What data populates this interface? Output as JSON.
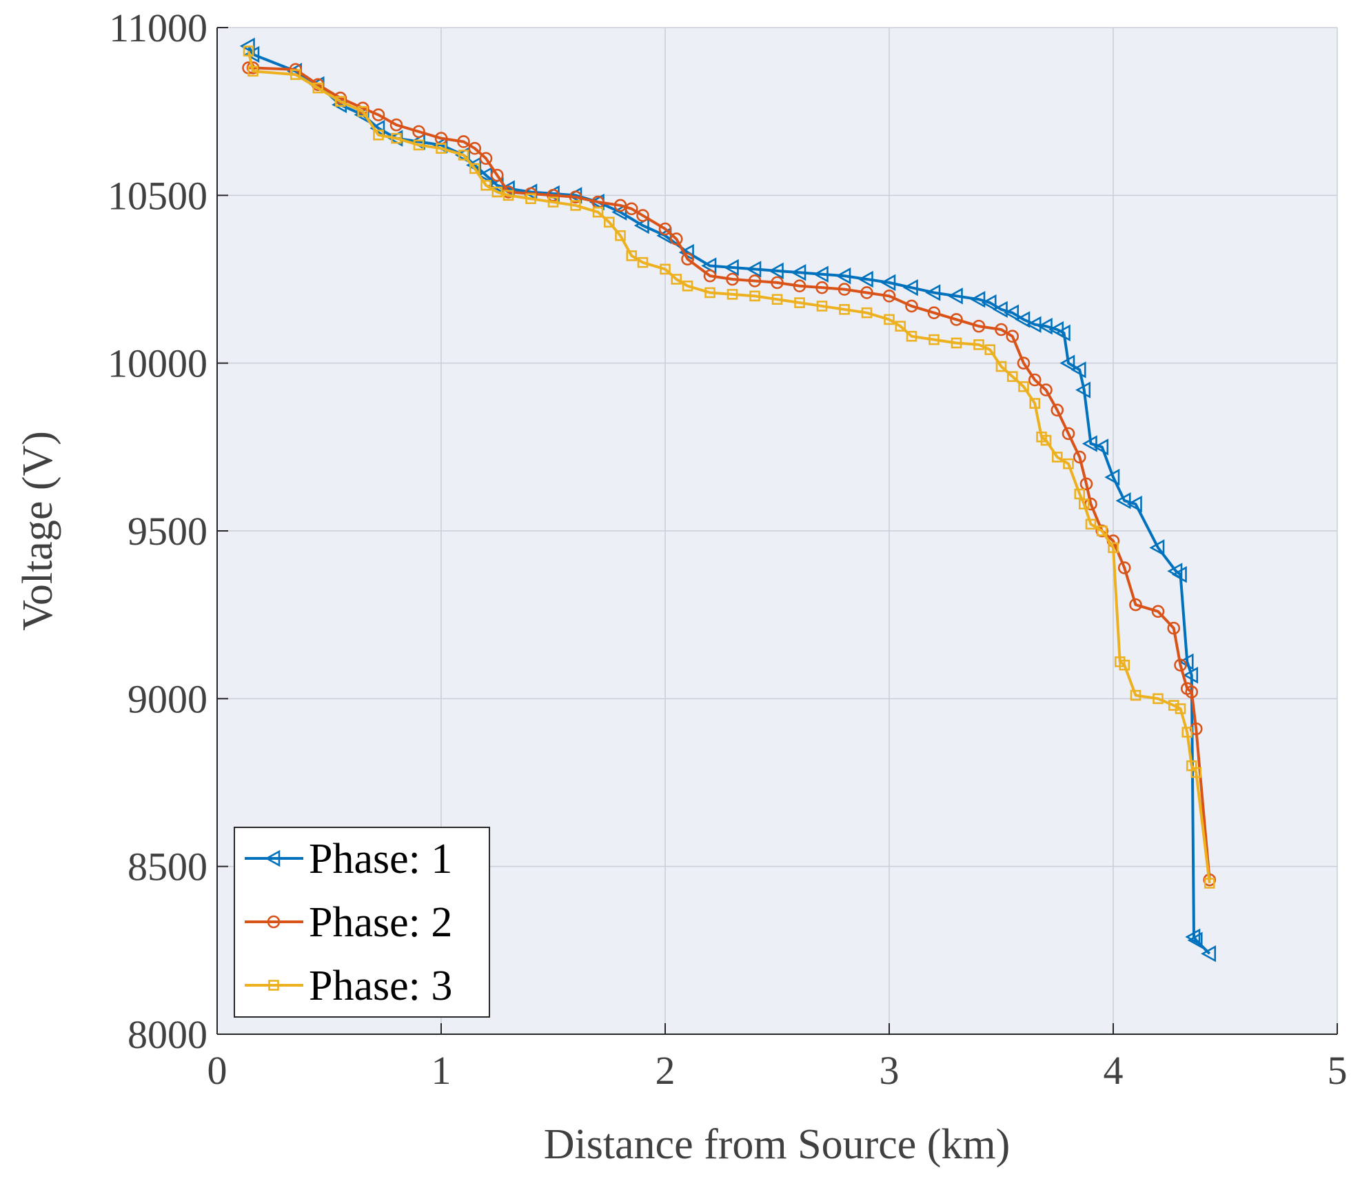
{
  "chart_data": {
    "type": "line",
    "title": "",
    "xlabel": "Distance from Source (km)",
    "ylabel": "Voltage (V)",
    "xlim": [
      0,
      5
    ],
    "ylim": [
      8000,
      11000
    ],
    "xticks": [
      0,
      1,
      2,
      3,
      4,
      5
    ],
    "yticks": [
      8000,
      8500,
      9000,
      9500,
      10000,
      10500,
      11000
    ],
    "grid": true,
    "legend_location": "bottom-left",
    "colors": {
      "plot_bg": "#eceff5",
      "grid": "#c9ced8",
      "axis": "#262626"
    },
    "series": [
      {
        "name": "Phase: 1",
        "color": "#0072BD",
        "marker": "triangle-left",
        "x": [
          0.14,
          0.16,
          0.35,
          0.45,
          0.55,
          0.65,
          0.72,
          0.8,
          0.9,
          1.0,
          1.1,
          1.15,
          1.2,
          1.25,
          1.3,
          1.4,
          1.5,
          1.6,
          1.7,
          1.8,
          1.9,
          2.0,
          2.1,
          2.2,
          2.3,
          2.4,
          2.5,
          2.6,
          2.7,
          2.8,
          2.9,
          3.0,
          3.1,
          3.2,
          3.3,
          3.4,
          3.45,
          3.5,
          3.55,
          3.6,
          3.65,
          3.7,
          3.75,
          3.78,
          3.8,
          3.85,
          3.87,
          3.9,
          3.95,
          4.0,
          4.05,
          4.1,
          4.2,
          4.28,
          4.3,
          4.33,
          4.35,
          4.36,
          4.37,
          4.43
        ],
        "y": [
          10945,
          10920,
          10870,
          10830,
          10770,
          10740,
          10700,
          10670,
          10660,
          10650,
          10620,
          10590,
          10560,
          10530,
          10520,
          10510,
          10505,
          10500,
          10480,
          10450,
          10410,
          10380,
          10330,
          10290,
          10285,
          10280,
          10275,
          10270,
          10265,
          10260,
          10250,
          10240,
          10225,
          10210,
          10200,
          10190,
          10180,
          10160,
          10150,
          10130,
          10115,
          10110,
          10100,
          10090,
          10000,
          9980,
          9920,
          9760,
          9750,
          9660,
          9590,
          9580,
          9450,
          9380,
          9370,
          9110,
          9070,
          8290,
          8280,
          8240
        ]
      },
      {
        "name": "Phase: 2",
        "color": "#D95319",
        "marker": "circle",
        "x": [
          0.14,
          0.16,
          0.35,
          0.45,
          0.55,
          0.65,
          0.72,
          0.8,
          0.9,
          1.0,
          1.1,
          1.15,
          1.2,
          1.25,
          1.3,
          1.4,
          1.5,
          1.6,
          1.7,
          1.8,
          1.85,
          1.9,
          2.0,
          2.05,
          2.1,
          2.2,
          2.3,
          2.4,
          2.5,
          2.6,
          2.7,
          2.8,
          2.9,
          3.0,
          3.1,
          3.2,
          3.3,
          3.4,
          3.5,
          3.55,
          3.6,
          3.65,
          3.7,
          3.75,
          3.8,
          3.85,
          3.88,
          3.9,
          3.95,
          4.0,
          4.05,
          4.1,
          4.2,
          4.27,
          4.3,
          4.33,
          4.35,
          4.37,
          4.43
        ],
        "y": [
          10880,
          10880,
          10875,
          10830,
          10790,
          10760,
          10740,
          10710,
          10690,
          10670,
          10660,
          10640,
          10610,
          10560,
          10510,
          10505,
          10500,
          10495,
          10480,
          10470,
          10460,
          10440,
          10400,
          10370,
          10310,
          10260,
          10250,
          10245,
          10240,
          10230,
          10225,
          10220,
          10210,
          10200,
          10170,
          10150,
          10130,
          10110,
          10100,
          10080,
          10000,
          9950,
          9920,
          9860,
          9790,
          9720,
          9640,
          9580,
          9500,
          9470,
          9390,
          9280,
          9260,
          9210,
          9100,
          9030,
          9020,
          8910,
          8460
        ]
      },
      {
        "name": "Phase: 3",
        "color": "#EDB120",
        "marker": "square",
        "x": [
          0.14,
          0.16,
          0.35,
          0.45,
          0.55,
          0.65,
          0.72,
          0.8,
          0.9,
          1.0,
          1.1,
          1.15,
          1.2,
          1.25,
          1.3,
          1.4,
          1.5,
          1.6,
          1.7,
          1.75,
          1.8,
          1.85,
          1.9,
          2.0,
          2.05,
          2.1,
          2.2,
          2.3,
          2.4,
          2.5,
          2.6,
          2.7,
          2.8,
          2.9,
          3.0,
          3.05,
          3.1,
          3.2,
          3.3,
          3.4,
          3.45,
          3.5,
          3.55,
          3.6,
          3.65,
          3.68,
          3.7,
          3.75,
          3.8,
          3.85,
          3.87,
          3.9,
          3.95,
          4.0,
          4.03,
          4.05,
          4.1,
          4.2,
          4.27,
          4.3,
          4.33,
          4.35,
          4.37,
          4.43
        ],
        "y": [
          10930,
          10870,
          10860,
          10820,
          10780,
          10750,
          10680,
          10670,
          10650,
          10640,
          10620,
          10580,
          10530,
          10510,
          10500,
          10490,
          10480,
          10470,
          10450,
          10420,
          10380,
          10320,
          10300,
          10280,
          10250,
          10230,
          10210,
          10205,
          10200,
          10190,
          10180,
          10170,
          10160,
          10150,
          10130,
          10110,
          10080,
          10070,
          10060,
          10055,
          10040,
          9990,
          9960,
          9930,
          9880,
          9780,
          9770,
          9720,
          9700,
          9610,
          9580,
          9520,
          9500,
          9450,
          9110,
          9100,
          9010,
          9000,
          8980,
          8970,
          8900,
          8800,
          8780,
          8450
        ]
      }
    ]
  }
}
